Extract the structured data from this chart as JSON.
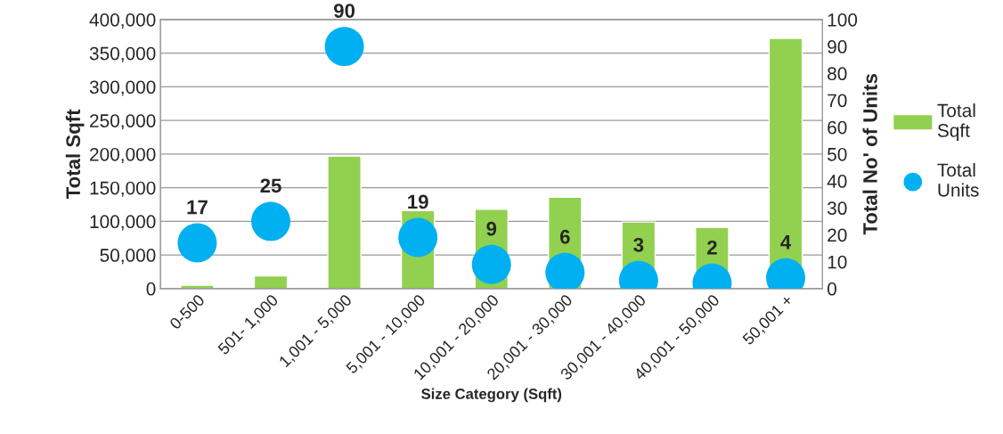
{
  "chart_data": {
    "type": "bar",
    "xlabel": "Size Category (Sqft)",
    "ylabel": "Total Sqft",
    "y2label": "Total No' of Units",
    "categories": [
      "0-500",
      "501- 1,000",
      "1,001 - 5,000",
      "5,001 - 10,000",
      "10,001 - 20,000",
      "20,001 - 30,000",
      "30,001 - 40,000",
      "40,001 - 50,000",
      "50,001 +"
    ],
    "series": [
      {
        "name": "Total Sqft",
        "color": "#92d050",
        "values": [
          5000,
          19000,
          197000,
          116000,
          118000,
          136000,
          99000,
          91000,
          372000
        ]
      },
      {
        "name": "Total Units",
        "type": "scatter",
        "axis": "y2",
        "color": "#00b0f0",
        "marker": "circle",
        "data_labels": true,
        "values": [
          17,
          25,
          90,
          19,
          9,
          6,
          3,
          2,
          4
        ]
      }
    ],
    "ylim": [
      0,
      400000
    ],
    "yticks": [
      {
        "value": 0,
        "label": "0"
      },
      {
        "value": 50000,
        "label": "50,000"
      },
      {
        "value": 100000,
        "label": "100,000"
      },
      {
        "value": 150000,
        "label": "150,000"
      },
      {
        "value": 200000,
        "label": "200,000"
      },
      {
        "value": 250000,
        "label": "250,000"
      },
      {
        "value": 300000,
        "label": "300,000"
      },
      {
        "value": 350000,
        "label": "350,000"
      },
      {
        "value": 400000,
        "label": "400,000"
      }
    ],
    "y2lim": [
      0,
      100
    ],
    "y2ticks": [
      0,
      10,
      20,
      30,
      40,
      50,
      60,
      70,
      80,
      90,
      100
    ],
    "grid": "y",
    "legend": "right"
  }
}
